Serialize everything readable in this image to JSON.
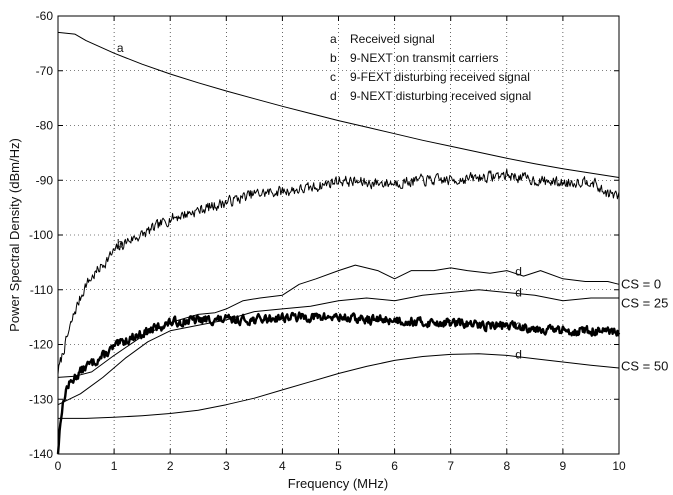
{
  "chart_data": {
    "type": "line",
    "xlabel": "Frequency (MHz)",
    "ylabel": "Power Spectral Density (dBm/Hz)",
    "xlim": [
      0,
      10
    ],
    "ylim": [
      -140,
      -60
    ],
    "xticks": [
      "0",
      "1",
      "2",
      "3",
      "4",
      "5",
      "6",
      "7",
      "8",
      "9",
      "10"
    ],
    "yticks": [
      "-140",
      "-130",
      "-120",
      "-110",
      "-100",
      "-90",
      "-80",
      "-70",
      "-60"
    ],
    "legend": {
      "placement": "top-right",
      "entries": [
        {
          "key": "a",
          "label": "Received signal"
        },
        {
          "key": "b",
          "label": "9-NEXT on transmit carriers"
        },
        {
          "key": "c",
          "label": "9-FEXT disturbing received signal"
        },
        {
          "key": "d",
          "label": "9-NEXT disturbing received signal"
        }
      ]
    },
    "series": [
      {
        "key": "a",
        "noisy": false,
        "width": 1,
        "x": [
          0,
          0.3,
          0.5,
          1,
          1.5,
          2,
          2.5,
          3,
          3.5,
          4,
          4.5,
          5,
          5.5,
          6,
          6.5,
          7,
          7.5,
          8,
          8.5,
          9,
          9.5,
          10
        ],
        "y": [
          -63,
          -63.3,
          -64.5,
          -66.8,
          -68.8,
          -70.6,
          -72.2,
          -73.7,
          -75.1,
          -76.5,
          -77.8,
          -79.1,
          -80.3,
          -81.5,
          -82.7,
          -83.8,
          -84.9,
          -86,
          -87,
          -87.9,
          -88.7,
          -89.5
        ]
      },
      {
        "key": "b",
        "noisy": true,
        "width": 1,
        "noise": 0.9,
        "seed": 7,
        "x": [
          0,
          0.1,
          0.3,
          0.5,
          0.75,
          1,
          1.25,
          1.5,
          1.75,
          2,
          2.5,
          3,
          3.5,
          4,
          4.5,
          5,
          5.5,
          6,
          6.5,
          7,
          7.5,
          8,
          8.5,
          9,
          9.5,
          9.7,
          10
        ],
        "y": [
          -125,
          -121,
          -114,
          -109,
          -106,
          -103,
          -101,
          -100,
          -98.5,
          -97,
          -95.5,
          -94,
          -92.5,
          -92,
          -91.5,
          -90,
          -90.5,
          -90.5,
          -90,
          -90,
          -89.5,
          -89,
          -90,
          -90.5,
          -90,
          -92,
          -93
        ]
      },
      {
        "key": "c",
        "noisy": true,
        "width": 2.4,
        "noise": 0.75,
        "seed": 13,
        "x": [
          0,
          0.05,
          0.15,
          0.3,
          0.5,
          0.75,
          1,
          1.25,
          1.5,
          1.75,
          2,
          2.5,
          3,
          3.5,
          4,
          4.5,
          5,
          5.5,
          6,
          6.5,
          7,
          7.5,
          8,
          8.5,
          9,
          9.5,
          10
        ],
        "y": [
          -140,
          -133,
          -128,
          -126,
          -124,
          -122.5,
          -120.5,
          -119,
          -118,
          -117,
          -116,
          -115.5,
          -115.5,
          -115.5,
          -115,
          -115,
          -115,
          -115.5,
          -115.5,
          -116,
          -116,
          -116.5,
          -116.5,
          -117,
          -117.5,
          -117.5,
          -118
        ]
      },
      {
        "key": "d0",
        "noisy": false,
        "width": 1,
        "x": [
          0,
          0.3,
          0.6,
          1,
          1.5,
          2,
          2.5,
          2.8,
          3,
          3.3,
          3.6,
          4,
          4.3,
          4.6,
          5,
          5.3,
          5.7,
          6,
          6.3,
          6.7,
          7,
          7.3,
          7.7,
          8,
          8.3,
          8.6,
          9,
          9.4,
          9.8,
          10
        ],
        "y": [
          -126,
          -125.8,
          -125,
          -122,
          -118.5,
          -116,
          -114.5,
          -114.2,
          -113.5,
          -112,
          -111.5,
          -111,
          -109,
          -108,
          -106.5,
          -105.5,
          -106.5,
          -108,
          -106.5,
          -106.5,
          -106,
          -106.5,
          -107,
          -106.5,
          -107.5,
          -106.5,
          -108,
          -108.5,
          -108.5,
          -109
        ]
      },
      {
        "key": "d25",
        "noisy": false,
        "width": 1,
        "x": [
          0,
          0.4,
          0.8,
          1.2,
          1.6,
          2,
          2.5,
          3,
          3.5,
          4,
          4.5,
          5,
          5.5,
          6,
          6.5,
          7,
          7.5,
          8,
          8.5,
          9,
          9.5,
          10
        ],
        "y": [
          -131,
          -129,
          -126,
          -122.5,
          -119.5,
          -117.5,
          -116.5,
          -115.5,
          -114,
          -113.5,
          -113,
          -112,
          -111.5,
          -112,
          -111,
          -110.5,
          -110,
          -110.5,
          -111,
          -112,
          -111.5,
          -111.5
        ]
      },
      {
        "key": "d50",
        "noisy": false,
        "width": 1,
        "x": [
          0,
          0.5,
          1,
          1.5,
          2,
          2.5,
          3,
          3.5,
          4,
          4.5,
          5,
          5.5,
          6,
          6.5,
          7,
          7.5,
          8,
          8.5,
          9,
          9.5,
          10
        ],
        "y": [
          -133.5,
          -133.5,
          -133.3,
          -133,
          -132.6,
          -132,
          -131,
          -129.8,
          -128.3,
          -126.8,
          -125.3,
          -124,
          -122.9,
          -122.2,
          -121.8,
          -121.7,
          -122,
          -122.6,
          -123.2,
          -123.8,
          -124.3
        ]
      }
    ],
    "annotations": [
      {
        "text": "a",
        "x": 1.05,
        "y": -66.6
      },
      {
        "text": "b",
        "x": 1.05,
        "y": -102.3
      },
      {
        "text": "c",
        "x": 8.15,
        "y": -117.2
      },
      {
        "text": "d",
        "x": 8.15,
        "y": -107.4
      },
      {
        "text": "d",
        "x": 8.15,
        "y": -111.2
      },
      {
        "text": "d",
        "x": 8.15,
        "y": -122.6
      }
    ],
    "cs_labels": [
      {
        "text": "CS = 0",
        "y": -109
      },
      {
        "text": "CS = 25",
        "y": -112.5
      },
      {
        "text": "CS = 50",
        "y": -124
      }
    ]
  }
}
